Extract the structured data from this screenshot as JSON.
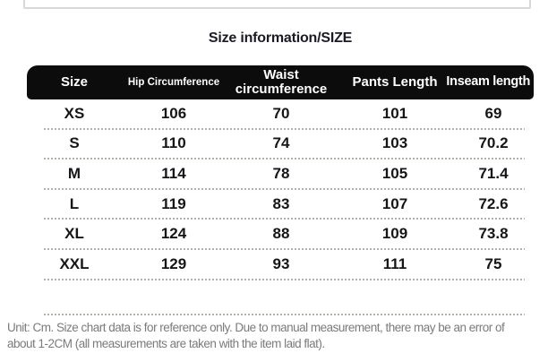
{
  "page": {
    "title": "Size information/SIZE",
    "footer_lines": [
      "Unit: Cm. Size chart data is for reference only. Due to manual measurement, there may be an error of",
      "about 1-2CM (all measurements are taken with the item laid flat)."
    ]
  },
  "chart_data": {
    "type": "table",
    "title": "Size information/SIZE",
    "unit": "Cm",
    "columns": [
      "Size",
      "Hip Circumference",
      "Waist circumference",
      "Pants Length",
      "Inseam length"
    ],
    "rows": [
      [
        "XS",
        "106",
        "70",
        "101",
        "69"
      ],
      [
        "S",
        "110",
        "74",
        "103",
        "70.2"
      ],
      [
        "M",
        "114",
        "78",
        "105",
        "71.4"
      ],
      [
        "L",
        "119",
        "83",
        "107",
        "72.6"
      ],
      [
        "XL",
        "124",
        "88",
        "109",
        "73.8"
      ],
      [
        "XXL",
        "129",
        "93",
        "111",
        "75"
      ]
    ]
  },
  "colors": {
    "header_bg": "#0c0c0c",
    "header_text": "#ffffff",
    "body_text": "#161616",
    "divider": "#b3b3a8",
    "footer_text": "#7b7b7b",
    "top_box_border": "#d8d8d8",
    "background": "#ffffff"
  }
}
